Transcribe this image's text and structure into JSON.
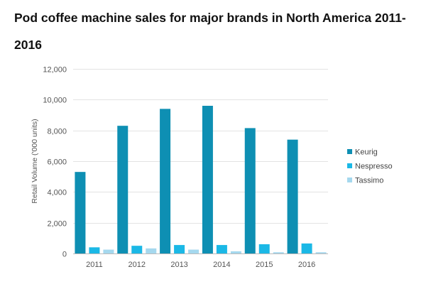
{
  "chart_data": {
    "type": "bar",
    "title": "Pod coffee machine sales for major brands in North America 2011-2016",
    "xlabel": "",
    "ylabel": "Retail Volume ('000 units)",
    "categories": [
      "2011",
      "2012",
      "2013",
      "2014",
      "2015",
      "2016"
    ],
    "ylim": [
      0,
      12000
    ],
    "yticks": [
      0,
      2000,
      4000,
      6000,
      8000,
      10000,
      12000
    ],
    "ytick_labels": [
      "0",
      "2,000",
      "4,000",
      "6,000",
      "8,000",
      "10,000",
      "12,000"
    ],
    "grid": true,
    "legend_position": "right",
    "series": [
      {
        "name": "Keurig",
        "color": "#0e8fb3",
        "values": [
          5300,
          8300,
          9400,
          9600,
          8150,
          7400
        ]
      },
      {
        "name": "Nespresso",
        "color": "#1bb8e6",
        "values": [
          400,
          500,
          550,
          550,
          600,
          650
        ]
      },
      {
        "name": "Tassimo",
        "color": "#a5d8ee",
        "values": [
          250,
          330,
          250,
          140,
          80,
          80
        ]
      }
    ]
  }
}
